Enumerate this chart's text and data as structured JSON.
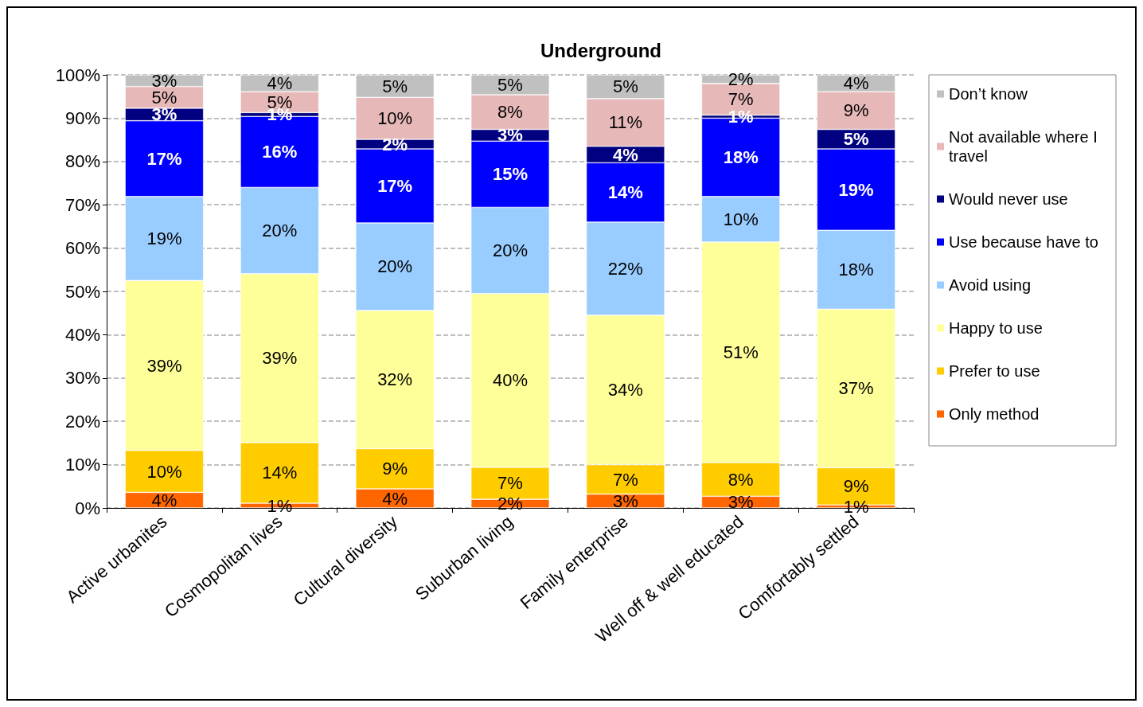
{
  "chart_data": {
    "type": "bar",
    "title": "Underground",
    "stacked": true,
    "categories": [
      "Active urbanites",
      "Cosmopolitan lives",
      "Cultural diversity",
      "Suburban living",
      "Family enterprise",
      "Well off & well educated",
      "Comfortably settled"
    ],
    "ylim": [
      0,
      100
    ],
    "yticks": [
      {
        "value": 0,
        "label": "0%"
      },
      {
        "value": 10,
        "label": "10%"
      },
      {
        "value": 20,
        "label": "20%"
      },
      {
        "value": 30,
        "label": "30%"
      },
      {
        "value": 40,
        "label": "40%"
      },
      {
        "value": 50,
        "label": "50%"
      },
      {
        "value": 60,
        "label": "60%"
      },
      {
        "value": 70,
        "label": "70%"
      },
      {
        "value": 80,
        "label": "80%"
      },
      {
        "value": 90,
        "label": "90%"
      },
      {
        "value": 100,
        "label": "100%"
      }
    ],
    "grid": "y",
    "legend": "right",
    "series": [
      {
        "name": "Only method",
        "color": "#ff6600",
        "values": [
          3.6,
          1.1,
          4.4,
          2.0,
          3.2,
          2.7,
          0.7
        ],
        "value_labels": [
          "4%",
          "1%",
          "4%",
          "2%",
          "3%",
          "3%",
          "1%"
        ]
      },
      {
        "name": "Prefer to use",
        "color": "#ffcc00",
        "values": [
          9.7,
          14.0,
          9.3,
          7.4,
          6.8,
          7.8,
          8.6
        ],
        "value_labels": [
          "10%",
          "14%",
          "9%",
          "7%",
          "7%",
          "8%",
          "9%"
        ]
      },
      {
        "name": "Happy to use",
        "color": "#ffff99",
        "values": [
          39.2,
          39.0,
          31.9,
          40.1,
          34.5,
          50.9,
          36.6
        ],
        "value_labels": [
          "39%",
          "39%",
          "32%",
          "40%",
          "34%",
          "51%",
          "37%"
        ]
      },
      {
        "name": "Avoid using",
        "color": "#99ccff",
        "values": [
          19.4,
          19.9,
          20.2,
          19.9,
          21.5,
          10.5,
          18.2
        ],
        "value_labels": [
          "19%",
          "20%",
          "20%",
          "20%",
          "22%",
          "10%",
          "18%"
        ]
      },
      {
        "name": "Use because have to",
        "color": "#0000ff",
        "values": [
          17.5,
          16.4,
          17.1,
          15.3,
          13.7,
          18.1,
          18.8
        ],
        "value_labels": [
          "17%",
          "16%",
          "17%",
          "15%",
          "14%",
          "18%",
          "19%"
        ]
      },
      {
        "name": "Would never use",
        "color": "#000080",
        "values": [
          2.9,
          0.9,
          2.2,
          2.7,
          3.8,
          0.7,
          4.5
        ],
        "value_labels": [
          "3%",
          "1%",
          "2%",
          "3%",
          "4%",
          "1%",
          "5%"
        ]
      },
      {
        "name": "Not available where I travel",
        "color": "#e6b8b7",
        "values": [
          5.0,
          4.8,
          9.7,
          8.0,
          11.0,
          7.3,
          8.7
        ],
        "value_labels": [
          "5%",
          "5%",
          "10%",
          "8%",
          "11%",
          "7%",
          "9%"
        ]
      },
      {
        "name": "Don’t know",
        "color": "#c0c0c0",
        "values": [
          2.7,
          3.9,
          5.2,
          4.6,
          5.5,
          2.0,
          3.9
        ],
        "value_labels": [
          "3%",
          "4%",
          "5%",
          "5%",
          "5%",
          "2%",
          "4%"
        ]
      }
    ]
  }
}
